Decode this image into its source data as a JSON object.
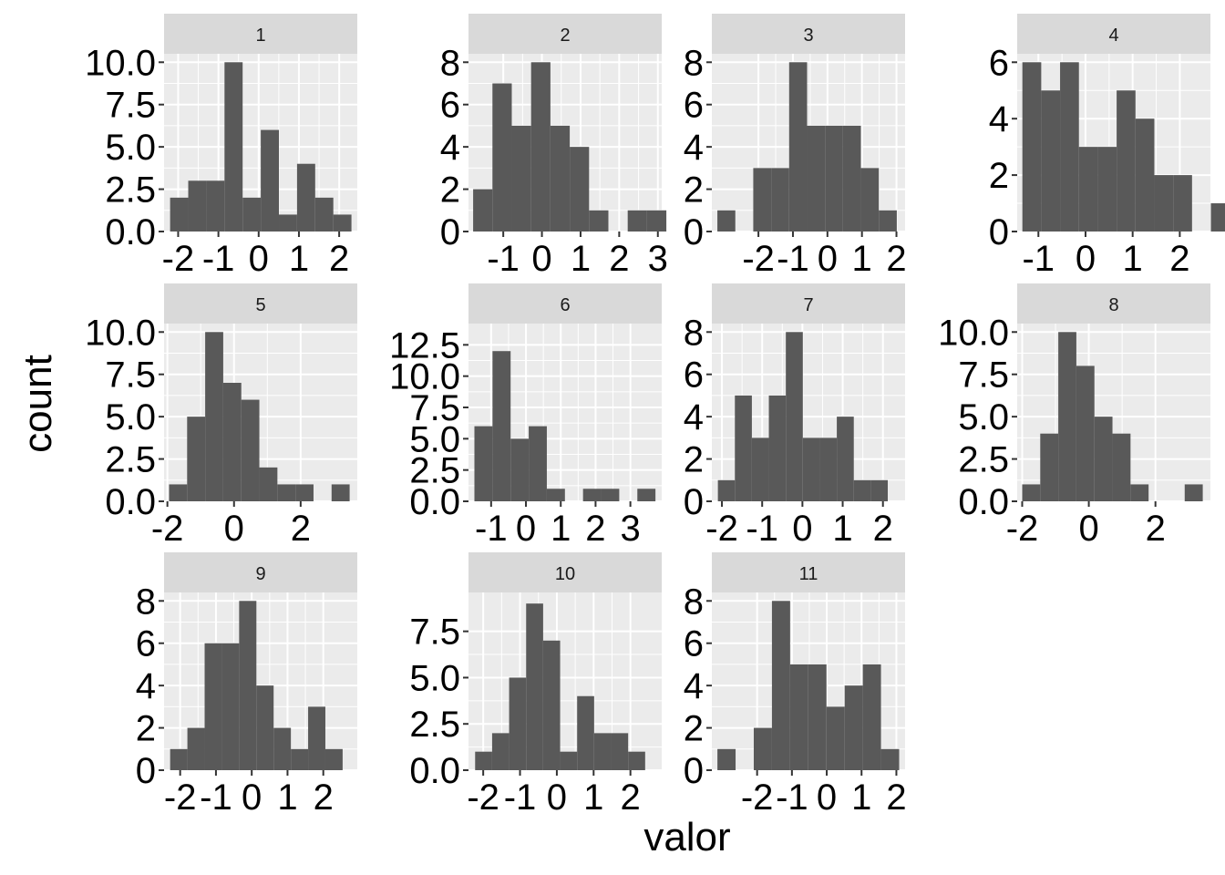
{
  "chart_data": {
    "type": "bar",
    "subtype": "faceted histogram",
    "xlabel": "valor",
    "ylabel": "count",
    "grid": true,
    "colors": {
      "bar": "#595959",
      "panel": "#ebebeb",
      "strip": "#d9d9d9",
      "grid": "#ffffff"
    },
    "panels": [
      {
        "label": "1",
        "x0": -2.2,
        "binwidth": 0.4505,
        "counts": [
          2,
          3,
          3,
          10,
          2,
          6,
          1,
          4,
          2,
          1
        ],
        "xlim": [
          -2.35,
          2.45
        ],
        "ylim": [
          0,
          10.5
        ],
        "xticks": [
          "-2",
          "-1",
          "0",
          "1",
          "2"
        ],
        "xtick_values": [
          -2,
          -1,
          0,
          1,
          2
        ],
        "yticks": [
          "0.0",
          "2.5",
          "5.0",
          "7.5",
          "10.0"
        ],
        "ytick_values": [
          0,
          2.5,
          5,
          7.5,
          10
        ]
      },
      {
        "label": "2",
        "x0": -1.78,
        "binwidth": 0.5,
        "counts": [
          2,
          7,
          5,
          8,
          5,
          4,
          1,
          0,
          1,
          1
        ],
        "xlim": [
          -1.9,
          3.1
        ],
        "ylim": [
          0,
          8.4
        ],
        "xticks": [
          "-1",
          "0",
          "1",
          "2",
          "3"
        ],
        "xtick_values": [
          -1,
          0,
          1,
          2,
          3
        ],
        "yticks": [
          "0",
          "2",
          "4",
          "6",
          "8"
        ],
        "ytick_values": [
          0,
          2,
          4,
          6,
          8
        ]
      },
      {
        "label": "3",
        "x0": -3.19,
        "binwidth": 0.52,
        "counts": [
          1,
          0,
          3,
          3,
          8,
          5,
          5,
          5,
          3,
          1
        ],
        "xlim": [
          -3.35,
          2.25
        ],
        "ylim": [
          0,
          8.4
        ],
        "xticks": [
          "-2",
          "-1",
          "0",
          "1",
          "2"
        ],
        "xtick_values": [
          -2,
          -1,
          0,
          1,
          2
        ],
        "yticks": [
          "0",
          "2",
          "4",
          "6",
          "8"
        ],
        "ytick_values": [
          0,
          2,
          4,
          6,
          8
        ]
      },
      {
        "label": "4",
        "x0": -1.34,
        "binwidth": 0.4,
        "counts": [
          6,
          5,
          6,
          3,
          3,
          5,
          4,
          2,
          2,
          0,
          1
        ],
        "xlim": [
          -1.45,
          2.65
        ],
        "ylim": [
          0,
          6.3
        ],
        "xticks": [
          "-1",
          "0",
          "1",
          "2"
        ],
        "xtick_values": [
          -1,
          0,
          1,
          2
        ],
        "yticks": [
          "0",
          "2",
          "4",
          "6"
        ],
        "ytick_values": [
          0,
          2,
          4,
          6
        ]
      },
      {
        "label": "5",
        "x0": -1.95,
        "binwidth": 0.542,
        "counts": [
          1,
          5,
          10,
          7,
          6,
          2,
          1,
          1,
          0,
          1
        ],
        "xlim": [
          -2.1,
          3.7
        ],
        "ylim": [
          0,
          10.5
        ],
        "xticks": [
          "-2",
          "0",
          "2"
        ],
        "xtick_values": [
          -2,
          0,
          2
        ],
        "yticks": [
          "0.0",
          "2.5",
          "5.0",
          "7.5",
          "10.0"
        ],
        "ytick_values": [
          0,
          2.5,
          5,
          7.5,
          10
        ]
      },
      {
        "label": "6",
        "x0": -1.48,
        "binwidth": 0.52,
        "counts": [
          6,
          12,
          5,
          6,
          1,
          0,
          1,
          1,
          0,
          1
        ],
        "xlim": [
          -1.65,
          3.9
        ],
        "ylim": [
          0,
          14.2
        ],
        "xticks": [
          "-1",
          "0",
          "1",
          "2",
          "3"
        ],
        "xtick_values": [
          -1,
          0,
          1,
          2,
          3
        ],
        "yticks": [
          "0.0",
          "2.5",
          "5.0",
          "7.5",
          "10.0",
          "12.5"
        ],
        "ytick_values": [
          0,
          2.5,
          5,
          7.5,
          10,
          12.5
        ]
      },
      {
        "label": "7",
        "x0": -2.1,
        "binwidth": 0.422,
        "counts": [
          1,
          5,
          3,
          5,
          8,
          3,
          3,
          4,
          1,
          1
        ],
        "xlim": [
          -2.25,
          2.55
        ],
        "ylim": [
          0,
          8.4
        ],
        "xticks": [
          "-2",
          "-1",
          "0",
          "1",
          "2"
        ],
        "xtick_values": [
          -2,
          -1,
          0,
          1,
          2
        ],
        "yticks": [
          "0",
          "2",
          "4",
          "6",
          "8"
        ],
        "ytick_values": [
          0,
          2,
          4,
          6,
          8
        ]
      },
      {
        "label": "8",
        "x0": -2.0,
        "binwidth": 0.542,
        "counts": [
          1,
          4,
          10,
          8,
          5,
          4,
          1,
          0,
          0,
          1
        ],
        "xlim": [
          -2.15,
          3.65
        ],
        "ylim": [
          0,
          10.5
        ],
        "xticks": [
          "-2",
          "0",
          "2"
        ],
        "xtick_values": [
          -2,
          0,
          2
        ],
        "yticks": [
          "0.0",
          "2.5",
          "5.0",
          "7.5",
          "10.0"
        ],
        "ytick_values": [
          0,
          2.5,
          5,
          7.5,
          10
        ]
      },
      {
        "label": "9",
        "x0": -2.28,
        "binwidth": 0.482,
        "counts": [
          1,
          2,
          6,
          6,
          8,
          4,
          2,
          1,
          3,
          1
        ],
        "xlim": [
          -2.45,
          2.95
        ],
        "ylim": [
          0,
          8.4
        ],
        "xticks": [
          "-2",
          "-1",
          "0",
          "1",
          "2"
        ],
        "xtick_values": [
          -2,
          -1,
          0,
          1,
          2
        ],
        "yticks": [
          "0",
          "2",
          "4",
          "6",
          "8"
        ],
        "ytick_values": [
          0,
          2,
          4,
          6,
          8
        ]
      },
      {
        "label": "10",
        "x0": -2.22,
        "binwidth": 0.462,
        "counts": [
          1,
          2,
          5,
          9,
          7,
          1,
          4,
          2,
          2,
          1
        ],
        "xlim": [
          -2.4,
          2.85
        ],
        "ylim": [
          0,
          9.6
        ],
        "xticks": [
          "-2",
          "-1",
          "0",
          "1",
          "2"
        ],
        "xtick_values": [
          -2,
          -1,
          0,
          1,
          2
        ],
        "yticks": [
          "0.0",
          "2.5",
          "5.0",
          "7.5"
        ],
        "ytick_values": [
          0,
          2.5,
          5,
          7.5
        ]
      },
      {
        "label": "11",
        "x0": -3.14,
        "binwidth": 0.522,
        "counts": [
          1,
          0,
          2,
          8,
          5,
          5,
          3,
          4,
          5,
          1
        ],
        "xlim": [
          -3.3,
          2.25
        ],
        "ylim": [
          0,
          8.4
        ],
        "xticks": [
          "-2",
          "-1",
          "0",
          "1",
          "2"
        ],
        "xtick_values": [
          -2,
          -1,
          0,
          1,
          2
        ],
        "yticks": [
          "0",
          "2",
          "4",
          "6",
          "8"
        ],
        "ytick_values": [
          0,
          2,
          4,
          6,
          8
        ]
      }
    ]
  }
}
